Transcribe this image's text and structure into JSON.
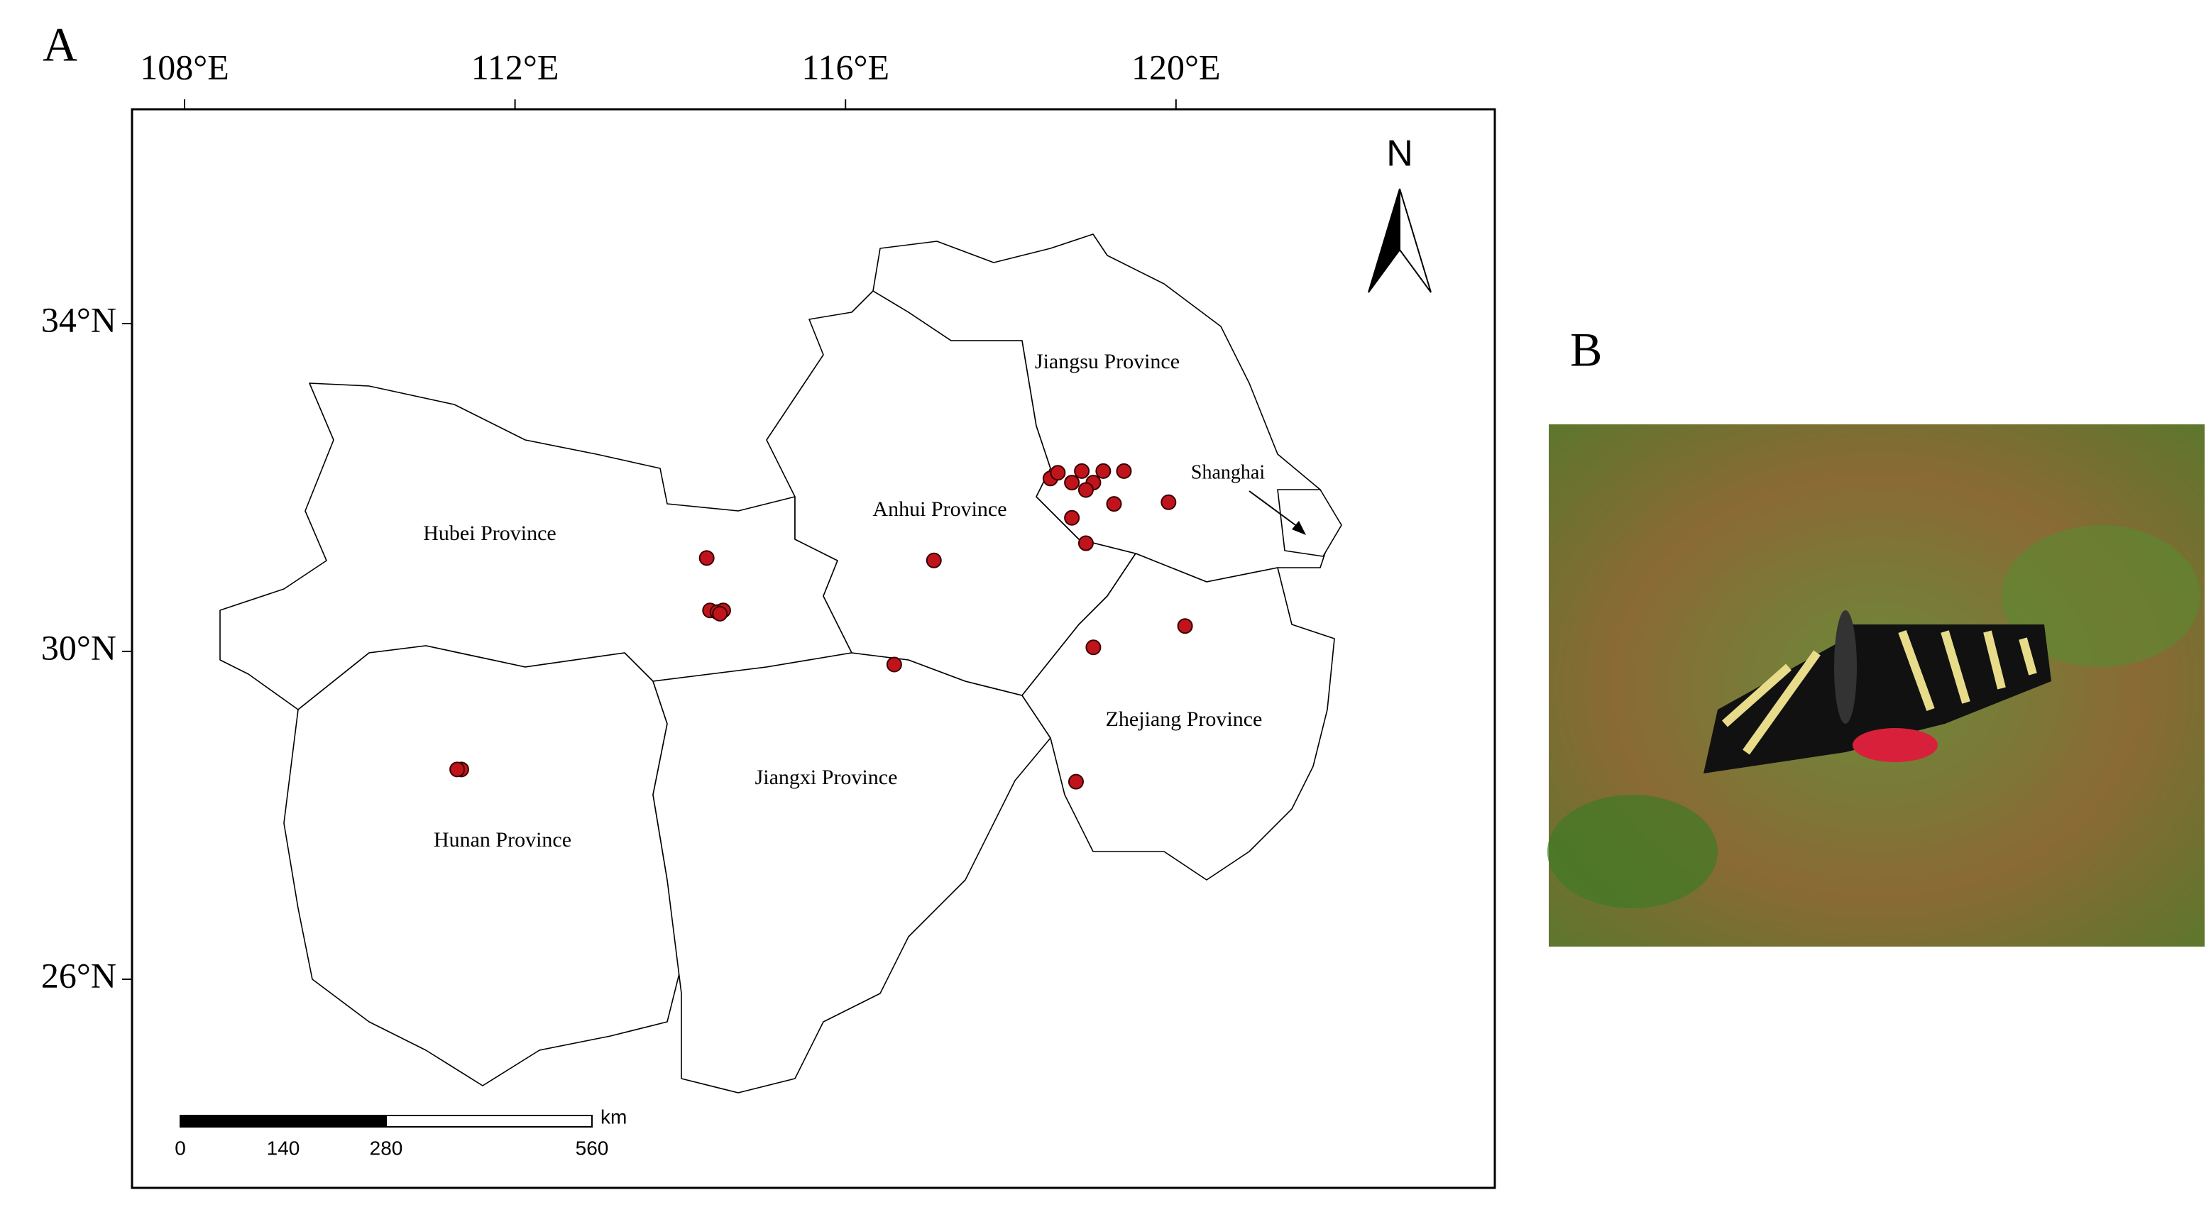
{
  "panel_a": {
    "label": "A",
    "lon_ticks": [
      {
        "value": 108,
        "label": "108°E"
      },
      {
        "value": 112,
        "label": "112°E"
      },
      {
        "value": 116,
        "label": "116°E"
      },
      {
        "value": 120,
        "label": "120°E"
      }
    ],
    "lat_ticks": [
      {
        "value": 34,
        "label": "34°N"
      },
      {
        "value": 30,
        "label": "30°N"
      },
      {
        "value": 26,
        "label": "26°N"
      }
    ],
    "north": "N",
    "provinces": [
      "Hubei Province",
      "Anhui Province",
      "Jiangsu Province",
      "Hunan Province",
      "Jiangxi Province",
      "Zhejiang Province"
    ],
    "shanghai": "Shanghai",
    "points": {
      "lon": [
        114.32,
        114.36,
        114.45,
        114.52,
        114.48,
        117.07,
        116.59,
        111.35,
        111.3,
        118.48,
        118.57,
        118.74,
        118.86,
        119.0,
        119.12,
        118.91,
        119.37,
        119.25,
        118.74,
        118.91,
        119.91,
        120.11,
        119.0,
        118.79
      ],
      "lat": [
        31.14,
        30.5,
        30.48,
        30.5,
        30.46,
        31.11,
        29.84,
        28.56,
        28.56,
        32.11,
        32.18,
        32.06,
        32.2,
        32.06,
        32.2,
        31.97,
        32.2,
        31.8,
        31.63,
        31.32,
        31.82,
        30.31,
        30.05,
        28.41
      ]
    },
    "scale_bar": {
      "unit": "km",
      "ticks": [
        0,
        140,
        280,
        560
      ]
    }
  },
  "panel_b": {
    "label": "B"
  }
}
